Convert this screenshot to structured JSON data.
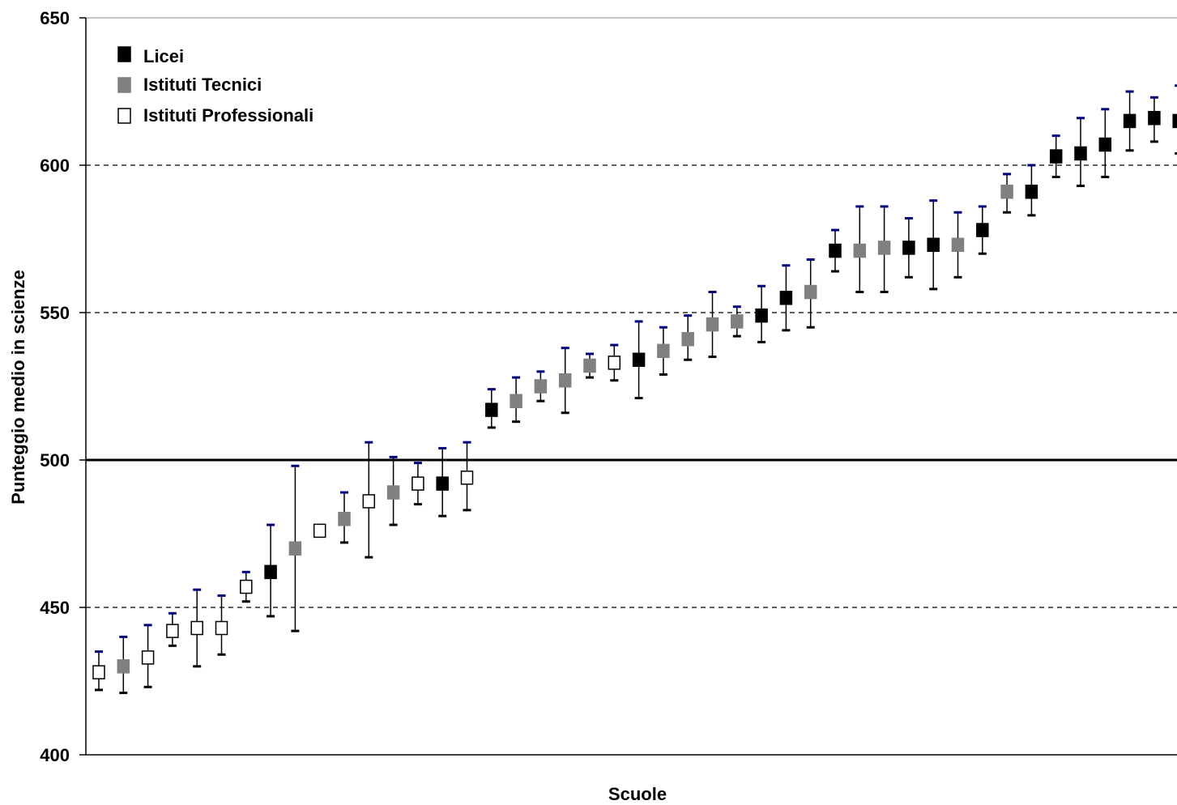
{
  "chart_data": {
    "type": "scatter",
    "title": "",
    "xlabel": "Scuole",
    "ylabel": "Punteggio medio in scienze",
    "ylim": [
      400,
      650
    ],
    "yticks": [
      400,
      450,
      500,
      550,
      600,
      650
    ],
    "gridlines": [
      450,
      550,
      600
    ],
    "reference_line": 500,
    "legend_position": "top-left",
    "colors": {
      "licei": "#000000",
      "tecnici": "#808080",
      "professionali": "#ffffff",
      "error_cap_top": "#00007a",
      "error_cap_bottom": "#000000"
    },
    "series": [
      {
        "name": "Licei",
        "key": "licei",
        "marker_fill": "#000000"
      },
      {
        "name": "Istituti Tecnici",
        "key": "tecnici",
        "marker_fill": "#808080"
      },
      {
        "name": "Istituti Professionali",
        "key": "professionali",
        "marker_fill": "#ffffff"
      }
    ],
    "points": [
      {
        "school": 1,
        "type": "professionali",
        "mean": 428,
        "low": 422,
        "high": 435
      },
      {
        "school": 2,
        "type": "tecnici",
        "mean": 430,
        "low": 421,
        "high": 440
      },
      {
        "school": 3,
        "type": "professionali",
        "mean": 433,
        "low": 423,
        "high": 444
      },
      {
        "school": 4,
        "type": "professionali",
        "mean": 442,
        "low": 437,
        "high": 448
      },
      {
        "school": 5,
        "type": "professionali",
        "mean": 443,
        "low": 430,
        "high": 456
      },
      {
        "school": 6,
        "type": "professionali",
        "mean": 443,
        "low": 434,
        "high": 454
      },
      {
        "school": 7,
        "type": "professionali",
        "mean": 457,
        "low": 452,
        "high": 462
      },
      {
        "school": 8,
        "type": "licei",
        "mean": 462,
        "low": 447,
        "high": 478
      },
      {
        "school": 9,
        "type": "tecnici",
        "mean": 470,
        "low": 442,
        "high": 498
      },
      {
        "school": 10,
        "type": "professionali",
        "mean": 476,
        "low": 476,
        "high": 476
      },
      {
        "school": 11,
        "type": "tecnici",
        "mean": 480,
        "low": 472,
        "high": 489
      },
      {
        "school": 12,
        "type": "professionali",
        "mean": 486,
        "low": 467,
        "high": 506
      },
      {
        "school": 13,
        "type": "tecnici",
        "mean": 489,
        "low": 478,
        "high": 501
      },
      {
        "school": 14,
        "type": "professionali",
        "mean": 492,
        "low": 485,
        "high": 499
      },
      {
        "school": 15,
        "type": "licei",
        "mean": 492,
        "low": 481,
        "high": 504
      },
      {
        "school": 16,
        "type": "professionali",
        "mean": 494,
        "low": 483,
        "high": 506
      },
      {
        "school": 17,
        "type": "licei",
        "mean": 517,
        "low": 511,
        "high": 524
      },
      {
        "school": 18,
        "type": "tecnici",
        "mean": 520,
        "low": 513,
        "high": 528
      },
      {
        "school": 19,
        "type": "tecnici",
        "mean": 525,
        "low": 520,
        "high": 530
      },
      {
        "school": 20,
        "type": "tecnici",
        "mean": 527,
        "low": 516,
        "high": 538
      },
      {
        "school": 21,
        "type": "tecnici",
        "mean": 532,
        "low": 528,
        "high": 536
      },
      {
        "school": 22,
        "type": "professionali",
        "mean": 533,
        "low": 527,
        "high": 539
      },
      {
        "school": 23,
        "type": "licei",
        "mean": 534,
        "low": 521,
        "high": 547
      },
      {
        "school": 24,
        "type": "tecnici",
        "mean": 537,
        "low": 529,
        "high": 545
      },
      {
        "school": 25,
        "type": "tecnici",
        "mean": 541,
        "low": 534,
        "high": 549
      },
      {
        "school": 26,
        "type": "tecnici",
        "mean": 546,
        "low": 535,
        "high": 557
      },
      {
        "school": 27,
        "type": "tecnici",
        "mean": 547,
        "low": 542,
        "high": 552
      },
      {
        "school": 28,
        "type": "licei",
        "mean": 549,
        "low": 540,
        "high": 559
      },
      {
        "school": 29,
        "type": "licei",
        "mean": 555,
        "low": 544,
        "high": 566
      },
      {
        "school": 30,
        "type": "tecnici",
        "mean": 557,
        "low": 545,
        "high": 568
      },
      {
        "school": 31,
        "type": "licei",
        "mean": 571,
        "low": 564,
        "high": 578
      },
      {
        "school": 32,
        "type": "tecnici",
        "mean": 571,
        "low": 557,
        "high": 586
      },
      {
        "school": 33,
        "type": "tecnici",
        "mean": 572,
        "low": 557,
        "high": 586
      },
      {
        "school": 34,
        "type": "licei",
        "mean": 572,
        "low": 562,
        "high": 582
      },
      {
        "school": 35,
        "type": "licei",
        "mean": 573,
        "low": 558,
        "high": 588
      },
      {
        "school": 36,
        "type": "tecnici",
        "mean": 573,
        "low": 562,
        "high": 584
      },
      {
        "school": 37,
        "type": "licei",
        "mean": 578,
        "low": 570,
        "high": 586
      },
      {
        "school": 38,
        "type": "tecnici",
        "mean": 591,
        "low": 584,
        "high": 597
      },
      {
        "school": 39,
        "type": "licei",
        "mean": 591,
        "low": 583,
        "high": 600
      },
      {
        "school": 40,
        "type": "licei",
        "mean": 603,
        "low": 596,
        "high": 610
      },
      {
        "school": 41,
        "type": "licei",
        "mean": 604,
        "low": 593,
        "high": 616
      },
      {
        "school": 42,
        "type": "licei",
        "mean": 607,
        "low": 596,
        "high": 619
      },
      {
        "school": 43,
        "type": "licei",
        "mean": 615,
        "low": 605,
        "high": 625
      },
      {
        "school": 44,
        "type": "licei",
        "mean": 616,
        "low": 608,
        "high": 623
      },
      {
        "school": 45,
        "type": "licei",
        "mean": 615,
        "low": 604,
        "high": 627
      }
    ]
  }
}
